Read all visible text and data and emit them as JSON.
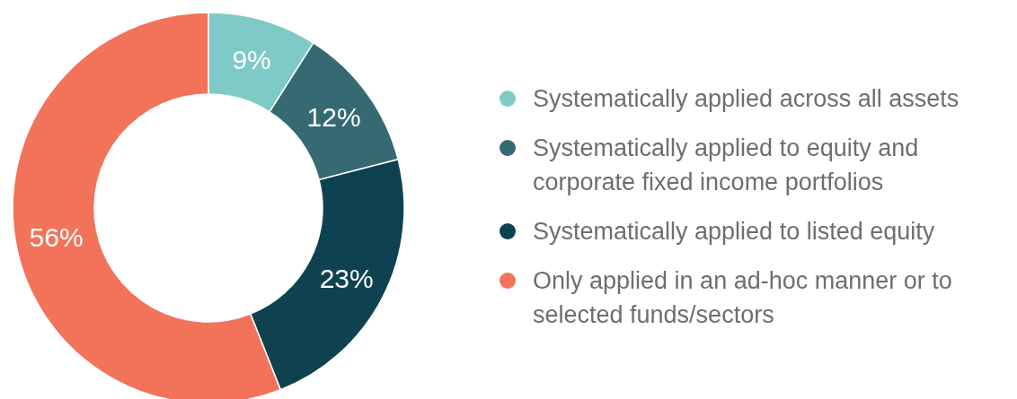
{
  "chart_data": {
    "type": "donut",
    "categories": [
      "Systematically applied across all assets",
      "Systematically applied to equity and corporate fixed income portfolios",
      "Systematically applied to listed equity",
      "Only applied in an ad-hoc manner or to selected funds/sectors"
    ],
    "values": [
      9,
      12,
      23,
      56
    ],
    "colors": [
      "#7ecac6",
      "#356a73",
      "#0e4250",
      "#f2735a"
    ],
    "value_labels": [
      "9%",
      "12%",
      "23%",
      "56%"
    ],
    "legend": "right"
  }
}
